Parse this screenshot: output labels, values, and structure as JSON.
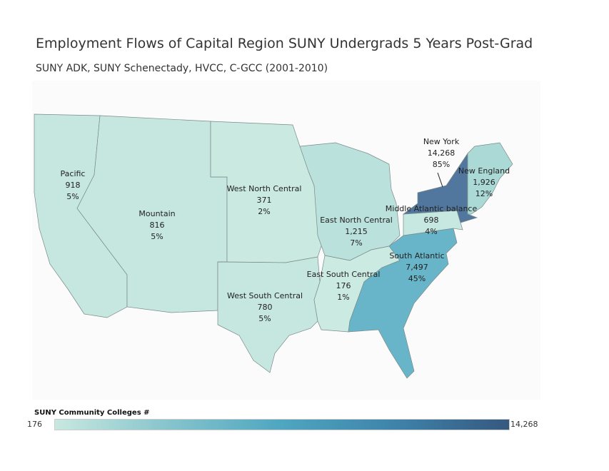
{
  "title": "Employment Flows of Capital Region SUNY Undergrads 5 Years Post-Grad",
  "subtitle": "SUNY ADK, SUNY Schenectady, HVCC, C-GCC (2001-2010)",
  "regions": [
    {
      "name": "Pacific",
      "value": "918",
      "pct": "5%",
      "color": "#c6e7df"
    },
    {
      "name": "Mountain",
      "value": "816",
      "pct": "5%",
      "color": "#c6e7df"
    },
    {
      "name": "West North Central",
      "value": "371",
      "pct": "2%",
      "color": "#c9e9e1"
    },
    {
      "name": "West South Central",
      "value": "780",
      "pct": "5%",
      "color": "#c6e7df"
    },
    {
      "name": "East North Central",
      "value": "1,215",
      "pct": "7%",
      "color": "#bbe1dc"
    },
    {
      "name": "East South Central",
      "value": "176",
      "pct": "1%",
      "color": "#cbeae2"
    },
    {
      "name": "South Atlantic",
      "value": "7,497",
      "pct": "45%",
      "color": "#68b5c9"
    },
    {
      "name": "Middle Atlantic balance",
      "value": "698",
      "pct": "4%",
      "color": "#c7e8e0"
    },
    {
      "name": "New York",
      "value": "14,268",
      "pct": "85%",
      "color": "#52779f"
    },
    {
      "name": "New England",
      "value": "1,926",
      "pct": "12%",
      "color": "#abd9d6"
    }
  ],
  "legend": {
    "title": "SUNY Community Colleges #",
    "min": "176",
    "max": "14,268"
  }
}
